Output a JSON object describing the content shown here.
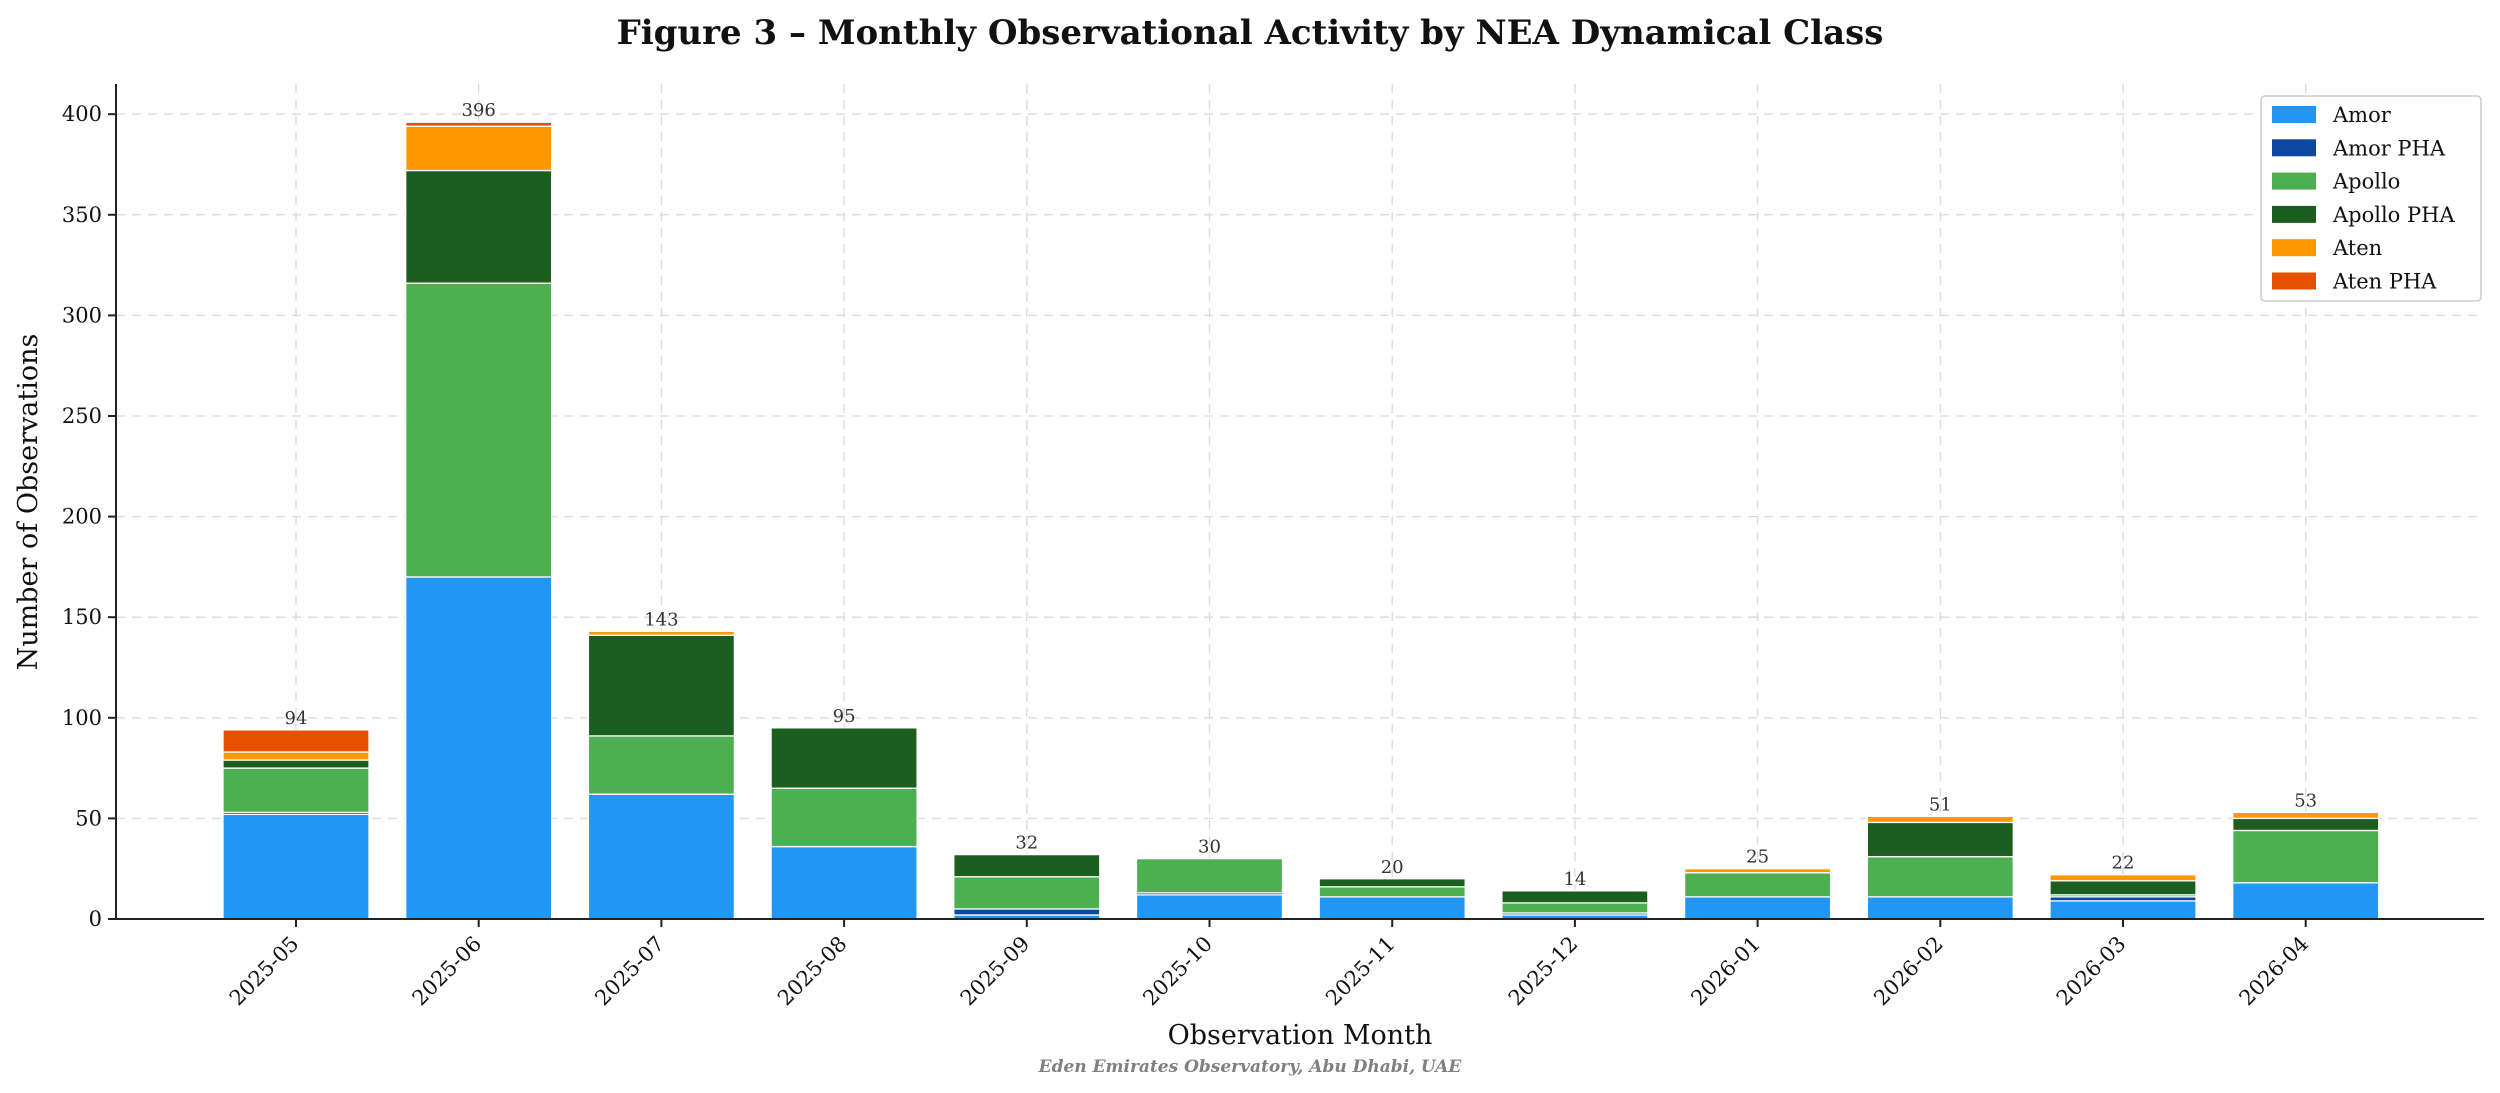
{
  "chart_data": {
    "type": "bar",
    "stacked": true,
    "title": "Figure 3 – Monthly Observational Activity by NEA Dynamical Class",
    "xlabel": "Observation Month",
    "ylabel": "Number of Observations",
    "credit": "Eden Emirates Observatory, Abu Dhabi, UAE",
    "ylim": [
      0,
      415
    ],
    "yticks": [
      0,
      50,
      100,
      150,
      200,
      250,
      300,
      350,
      400
    ],
    "grid": true,
    "legend_position": "top-right",
    "categories": [
      "2025-05",
      "2025-06",
      "2025-07",
      "2025-08",
      "2025-09",
      "2025-10",
      "2025-11",
      "2025-12",
      "2026-01",
      "2026-02",
      "2026-03",
      "2026-04"
    ],
    "series": [
      {
        "name": "Amor",
        "color": "#2196F3",
        "values": [
          52,
          170,
          62,
          36,
          2,
          12,
          11,
          2,
          11,
          11,
          9,
          18
        ]
      },
      {
        "name": "Amor PHA",
        "color": "#0D47A1",
        "values": [
          1,
          0,
          0,
          0,
          3,
          1,
          0,
          1,
          0,
          0,
          2,
          0
        ]
      },
      {
        "name": "Apollo",
        "color": "#4CAF50",
        "values": [
          22,
          146,
          29,
          29,
          16,
          17,
          5,
          5,
          12,
          20,
          1,
          26
        ]
      },
      {
        "name": "Apollo PHA",
        "color": "#1B5E20",
        "values": [
          4,
          56,
          50,
          30,
          11,
          0,
          4,
          6,
          0,
          17,
          7,
          6
        ]
      },
      {
        "name": "Aten",
        "color": "#FF9800",
        "values": [
          4,
          22,
          2,
          0,
          0,
          0,
          0,
          0,
          2,
          3,
          3,
          3
        ]
      },
      {
        "name": "Aten PHA",
        "color": "#E65100",
        "values": [
          11,
          2,
          0,
          0,
          0,
          0,
          0,
          0,
          0,
          0,
          0,
          0
        ]
      }
    ],
    "totals": [
      94,
      396,
      143,
      95,
      32,
      30,
      20,
      14,
      25,
      51,
      22,
      53
    ]
  }
}
